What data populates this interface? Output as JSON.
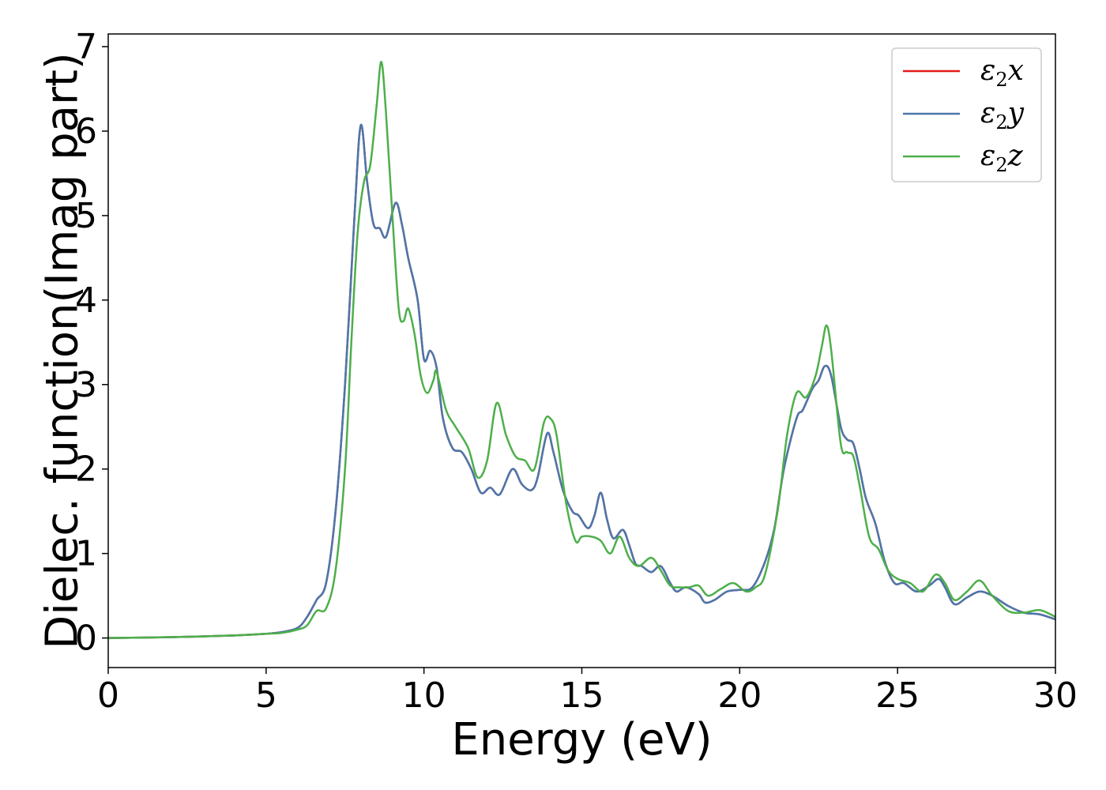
{
  "chart_data": {
    "type": "line",
    "xlabel": "Energy (eV)",
    "ylabel": "Dielec. function(Imag part)",
    "xlim": [
      0,
      30
    ],
    "ylim": [
      -0.35,
      7.15
    ],
    "xticks": [
      0,
      5,
      10,
      15,
      20,
      25,
      30
    ],
    "yticks": [
      0,
      1,
      2,
      3,
      4,
      5,
      6,
      7
    ],
    "grid": false,
    "legend_position": "top-right",
    "series": [
      {
        "name": "ε2x",
        "legend_main": "ε",
        "legend_sub": "2",
        "legend_tail": "x",
        "color": "#e41a1c",
        "points": [
          [
            0,
            0
          ],
          [
            2,
            0.01
          ],
          [
            4,
            0.03
          ],
          [
            5,
            0.05
          ],
          [
            5.5,
            0.07
          ],
          [
            6,
            0.12
          ],
          [
            6.3,
            0.25
          ],
          [
            6.6,
            0.45
          ],
          [
            6.9,
            0.65
          ],
          [
            7.2,
            1.5
          ],
          [
            7.5,
            3.0
          ],
          [
            7.8,
            5.0
          ],
          [
            8.0,
            6.07
          ],
          [
            8.2,
            5.4
          ],
          [
            8.4,
            4.9
          ],
          [
            8.6,
            4.85
          ],
          [
            8.8,
            4.75
          ],
          [
            9.1,
            5.15
          ],
          [
            9.3,
            4.9
          ],
          [
            9.5,
            4.5
          ],
          [
            9.8,
            4.0
          ],
          [
            10.0,
            3.3
          ],
          [
            10.2,
            3.4
          ],
          [
            10.4,
            3.2
          ],
          [
            10.6,
            2.6
          ],
          [
            10.9,
            2.25
          ],
          [
            11.2,
            2.2
          ],
          [
            11.5,
            2.0
          ],
          [
            11.8,
            1.72
          ],
          [
            12.1,
            1.78
          ],
          [
            12.4,
            1.7
          ],
          [
            12.8,
            2.0
          ],
          [
            13.1,
            1.82
          ],
          [
            13.4,
            1.75
          ],
          [
            13.6,
            1.9
          ],
          [
            13.9,
            2.42
          ],
          [
            14.1,
            2.2
          ],
          [
            14.4,
            1.75
          ],
          [
            14.7,
            1.5
          ],
          [
            14.9,
            1.45
          ],
          [
            15.2,
            1.3
          ],
          [
            15.4,
            1.45
          ],
          [
            15.6,
            1.72
          ],
          [
            15.8,
            1.4
          ],
          [
            16.0,
            1.18
          ],
          [
            16.3,
            1.28
          ],
          [
            16.5,
            1.1
          ],
          [
            16.7,
            0.88
          ],
          [
            16.9,
            0.85
          ],
          [
            17.2,
            0.78
          ],
          [
            17.5,
            0.85
          ],
          [
            17.8,
            0.65
          ],
          [
            18.0,
            0.55
          ],
          [
            18.3,
            0.6
          ],
          [
            18.7,
            0.52
          ],
          [
            18.9,
            0.42
          ],
          [
            19.2,
            0.45
          ],
          [
            19.6,
            0.55
          ],
          [
            20.0,
            0.57
          ],
          [
            20.4,
            0.6
          ],
          [
            20.8,
            0.9
          ],
          [
            21.1,
            1.3
          ],
          [
            21.4,
            2.0
          ],
          [
            21.8,
            2.6
          ],
          [
            22.0,
            2.7
          ],
          [
            22.3,
            2.95
          ],
          [
            22.5,
            3.05
          ],
          [
            22.7,
            3.22
          ],
          [
            22.9,
            3.1
          ],
          [
            23.2,
            2.5
          ],
          [
            23.4,
            2.35
          ],
          [
            23.6,
            2.3
          ],
          [
            23.8,
            2.0
          ],
          [
            24.0,
            1.65
          ],
          [
            24.3,
            1.35
          ],
          [
            24.6,
            0.9
          ],
          [
            24.9,
            0.65
          ],
          [
            25.2,
            0.65
          ],
          [
            25.6,
            0.55
          ],
          [
            26.0,
            0.62
          ],
          [
            26.3,
            0.7
          ],
          [
            26.5,
            0.6
          ],
          [
            26.8,
            0.4
          ],
          [
            27.2,
            0.48
          ],
          [
            27.6,
            0.55
          ],
          [
            28.0,
            0.5
          ],
          [
            28.5,
            0.38
          ],
          [
            29.0,
            0.3
          ],
          [
            29.5,
            0.28
          ],
          [
            30.0,
            0.22
          ]
        ]
      },
      {
        "name": "ε2y",
        "legend_main": "ε",
        "legend_sub": "2",
        "legend_tail": "y",
        "color": "#4a77ac",
        "points": [
          [
            0,
            0
          ],
          [
            2,
            0.01
          ],
          [
            4,
            0.03
          ],
          [
            5,
            0.05
          ],
          [
            5.5,
            0.07
          ],
          [
            6,
            0.12
          ],
          [
            6.3,
            0.25
          ],
          [
            6.6,
            0.45
          ],
          [
            6.9,
            0.65
          ],
          [
            7.2,
            1.5
          ],
          [
            7.5,
            3.0
          ],
          [
            7.8,
            5.0
          ],
          [
            8.0,
            6.07
          ],
          [
            8.2,
            5.4
          ],
          [
            8.4,
            4.9
          ],
          [
            8.6,
            4.85
          ],
          [
            8.8,
            4.75
          ],
          [
            9.1,
            5.15
          ],
          [
            9.3,
            4.9
          ],
          [
            9.5,
            4.5
          ],
          [
            9.8,
            4.0
          ],
          [
            10.0,
            3.3
          ],
          [
            10.2,
            3.4
          ],
          [
            10.4,
            3.2
          ],
          [
            10.6,
            2.6
          ],
          [
            10.9,
            2.25
          ],
          [
            11.2,
            2.2
          ],
          [
            11.5,
            2.0
          ],
          [
            11.8,
            1.72
          ],
          [
            12.1,
            1.78
          ],
          [
            12.4,
            1.7
          ],
          [
            12.8,
            2.0
          ],
          [
            13.1,
            1.82
          ],
          [
            13.4,
            1.75
          ],
          [
            13.6,
            1.9
          ],
          [
            13.9,
            2.42
          ],
          [
            14.1,
            2.2
          ],
          [
            14.4,
            1.75
          ],
          [
            14.7,
            1.5
          ],
          [
            14.9,
            1.45
          ],
          [
            15.2,
            1.3
          ],
          [
            15.4,
            1.45
          ],
          [
            15.6,
            1.72
          ],
          [
            15.8,
            1.4
          ],
          [
            16.0,
            1.18
          ],
          [
            16.3,
            1.28
          ],
          [
            16.5,
            1.1
          ],
          [
            16.7,
            0.88
          ],
          [
            16.9,
            0.85
          ],
          [
            17.2,
            0.78
          ],
          [
            17.5,
            0.85
          ],
          [
            17.8,
            0.65
          ],
          [
            18.0,
            0.55
          ],
          [
            18.3,
            0.6
          ],
          [
            18.7,
            0.52
          ],
          [
            18.9,
            0.42
          ],
          [
            19.2,
            0.45
          ],
          [
            19.6,
            0.55
          ],
          [
            20.0,
            0.57
          ],
          [
            20.4,
            0.6
          ],
          [
            20.8,
            0.9
          ],
          [
            21.1,
            1.3
          ],
          [
            21.4,
            2.0
          ],
          [
            21.8,
            2.6
          ],
          [
            22.0,
            2.7
          ],
          [
            22.3,
            2.95
          ],
          [
            22.5,
            3.05
          ],
          [
            22.7,
            3.22
          ],
          [
            22.9,
            3.1
          ],
          [
            23.2,
            2.5
          ],
          [
            23.4,
            2.35
          ],
          [
            23.6,
            2.3
          ],
          [
            23.8,
            2.0
          ],
          [
            24.0,
            1.65
          ],
          [
            24.3,
            1.35
          ],
          [
            24.6,
            0.9
          ],
          [
            24.9,
            0.65
          ],
          [
            25.2,
            0.65
          ],
          [
            25.6,
            0.55
          ],
          [
            26.0,
            0.62
          ],
          [
            26.3,
            0.7
          ],
          [
            26.5,
            0.6
          ],
          [
            26.8,
            0.4
          ],
          [
            27.2,
            0.48
          ],
          [
            27.6,
            0.55
          ],
          [
            28.0,
            0.5
          ],
          [
            28.5,
            0.38
          ],
          [
            29.0,
            0.3
          ],
          [
            29.5,
            0.28
          ],
          [
            30.0,
            0.22
          ]
        ]
      },
      {
        "name": "ε2z",
        "legend_main": "ε",
        "legend_sub": "2",
        "legend_tail": "z",
        "color": "#4daf4a",
        "points": [
          [
            0,
            0
          ],
          [
            2,
            0.01
          ],
          [
            4,
            0.03
          ],
          [
            5,
            0.05
          ],
          [
            5.5,
            0.06
          ],
          [
            6,
            0.1
          ],
          [
            6.3,
            0.15
          ],
          [
            6.6,
            0.32
          ],
          [
            6.9,
            0.35
          ],
          [
            7.2,
            0.8
          ],
          [
            7.5,
            2.0
          ],
          [
            7.7,
            3.5
          ],
          [
            7.9,
            4.8
          ],
          [
            8.1,
            5.4
          ],
          [
            8.3,
            5.6
          ],
          [
            8.5,
            6.3
          ],
          [
            8.65,
            6.82
          ],
          [
            8.8,
            6.2
          ],
          [
            9.0,
            5.0
          ],
          [
            9.2,
            3.9
          ],
          [
            9.35,
            3.75
          ],
          [
            9.5,
            3.9
          ],
          [
            9.7,
            3.6
          ],
          [
            9.9,
            3.1
          ],
          [
            10.1,
            2.9
          ],
          [
            10.3,
            3.05
          ],
          [
            10.4,
            3.15
          ],
          [
            10.7,
            2.7
          ],
          [
            11.0,
            2.5
          ],
          [
            11.4,
            2.25
          ],
          [
            11.7,
            1.9
          ],
          [
            12.0,
            2.1
          ],
          [
            12.3,
            2.78
          ],
          [
            12.6,
            2.4
          ],
          [
            12.9,
            2.15
          ],
          [
            13.2,
            2.1
          ],
          [
            13.5,
            2.0
          ],
          [
            13.8,
            2.55
          ],
          [
            14.0,
            2.6
          ],
          [
            14.2,
            2.4
          ],
          [
            14.5,
            1.6
          ],
          [
            14.8,
            1.15
          ],
          [
            15.0,
            1.2
          ],
          [
            15.3,
            1.2
          ],
          [
            15.6,
            1.15
          ],
          [
            15.9,
            1.0
          ],
          [
            16.2,
            1.2
          ],
          [
            16.5,
            0.95
          ],
          [
            16.8,
            0.85
          ],
          [
            17.2,
            0.95
          ],
          [
            17.5,
            0.8
          ],
          [
            17.8,
            0.62
          ],
          [
            18.1,
            0.6
          ],
          [
            18.4,
            0.6
          ],
          [
            18.7,
            0.62
          ],
          [
            19.0,
            0.5
          ],
          [
            19.4,
            0.58
          ],
          [
            19.8,
            0.65
          ],
          [
            20.2,
            0.55
          ],
          [
            20.5,
            0.6
          ],
          [
            20.8,
            0.75
          ],
          [
            21.2,
            1.5
          ],
          [
            21.5,
            2.4
          ],
          [
            21.8,
            2.9
          ],
          [
            22.1,
            2.85
          ],
          [
            22.4,
            3.1
          ],
          [
            22.6,
            3.45
          ],
          [
            22.75,
            3.7
          ],
          [
            22.9,
            3.4
          ],
          [
            23.2,
            2.3
          ],
          [
            23.4,
            2.2
          ],
          [
            23.6,
            2.15
          ],
          [
            23.8,
            1.8
          ],
          [
            24.1,
            1.2
          ],
          [
            24.4,
            1.05
          ],
          [
            24.7,
            0.8
          ],
          [
            25.0,
            0.7
          ],
          [
            25.4,
            0.65
          ],
          [
            25.8,
            0.55
          ],
          [
            26.2,
            0.75
          ],
          [
            26.5,
            0.65
          ],
          [
            26.8,
            0.45
          ],
          [
            27.2,
            0.55
          ],
          [
            27.6,
            0.68
          ],
          [
            28.0,
            0.5
          ],
          [
            28.5,
            0.32
          ],
          [
            29.0,
            0.3
          ],
          [
            29.5,
            0.33
          ],
          [
            30.0,
            0.25
          ]
        ]
      }
    ]
  }
}
